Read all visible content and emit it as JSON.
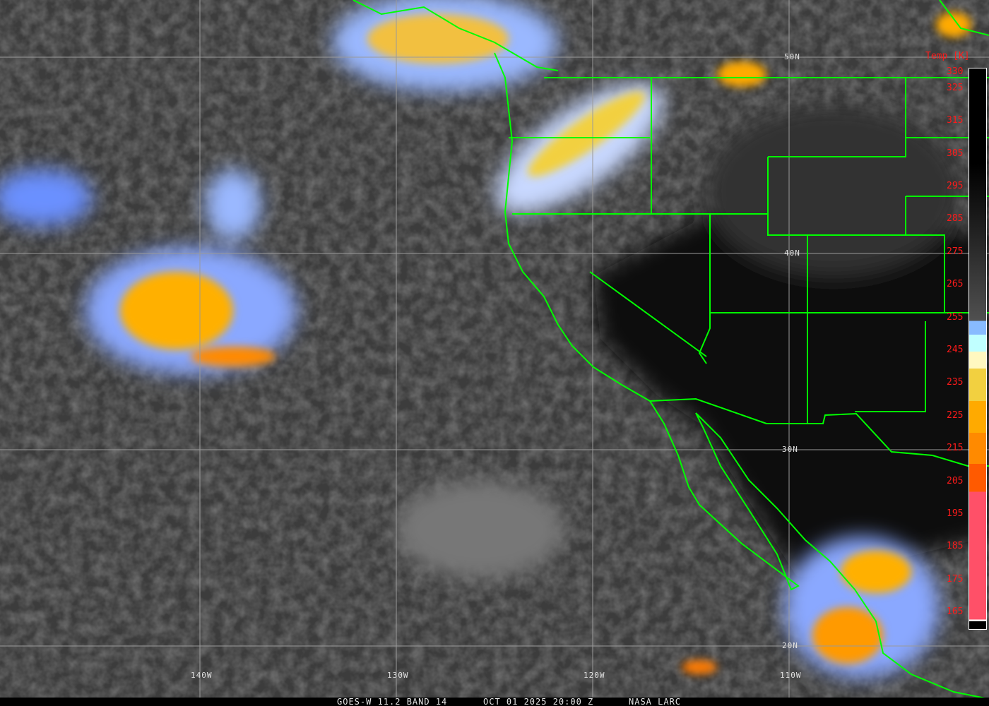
{
  "footer": {
    "satellite": "GOES-W 11.2 BAND 14",
    "datetime": "OCT 01 2025 20:00 Z",
    "source": "NASA LARC"
  },
  "legend": {
    "title": "Temp [K]",
    "ticks": [
      "330",
      "325",
      "315",
      "305",
      "295",
      "285",
      "275",
      "265",
      "255",
      "245",
      "235",
      "225",
      "215",
      "205",
      "195",
      "185",
      "175",
      "165"
    ],
    "colors": {
      "cold_pink": "#ff5068",
      "red_orange": "#ff5a00",
      "orange": "#ff8a00",
      "amber": "#ffaa00",
      "yellow": "#f2d040",
      "pale_yellow": "#fff8c0",
      "cyan": "#c0ffff",
      "light_blue": "#88bbff",
      "blue": "#3a80ff"
    }
  },
  "grid": {
    "latitudes": [
      "50N",
      "40N",
      "30N",
      "20N"
    ],
    "longitudes": [
      "140W",
      "130W",
      "120W",
      "110W"
    ]
  },
  "map": {
    "line_color": "#00ff00",
    "grid_color": "#9a9a9a"
  }
}
